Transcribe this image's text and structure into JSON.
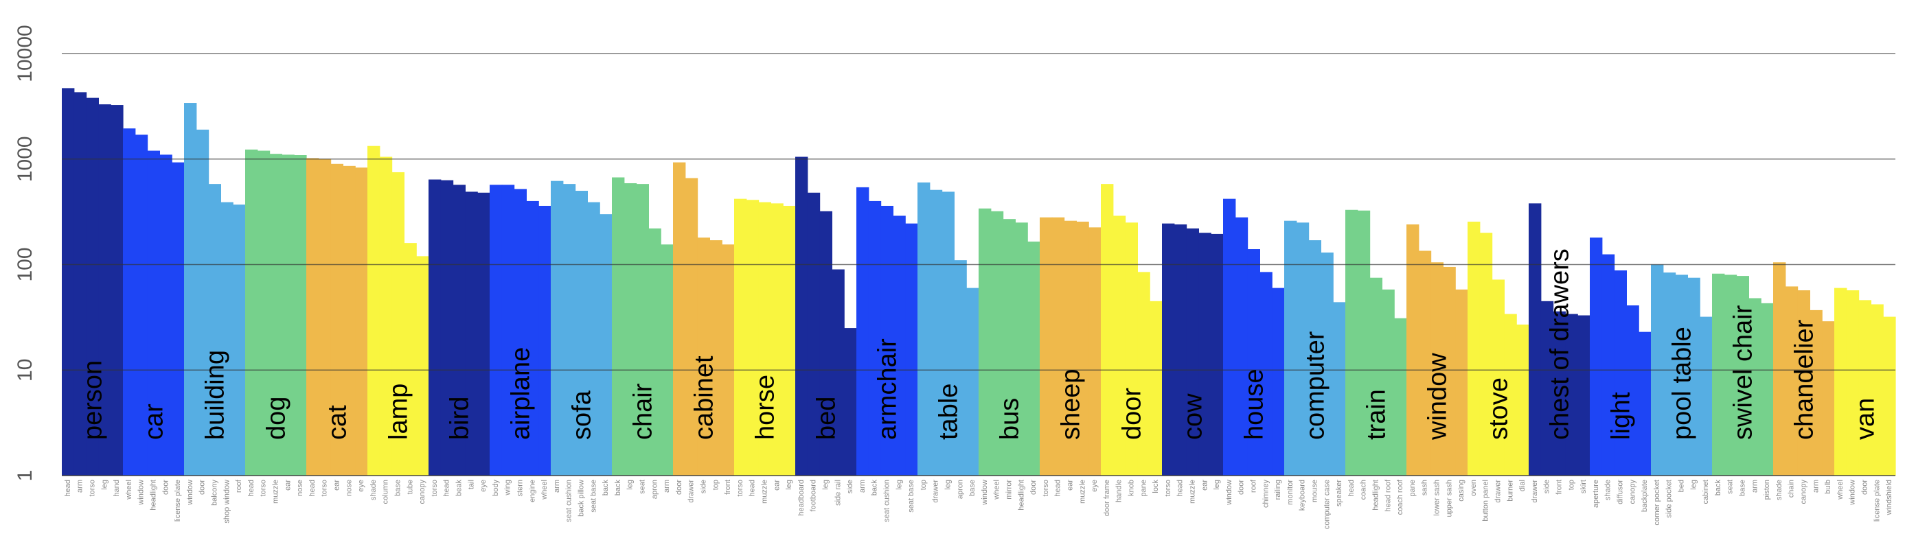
{
  "chart_data": {
    "type": "bar",
    "yscale": "log",
    "ylim": [
      1,
      10000
    ],
    "yticks": [
      "1",
      "10",
      "100",
      "1000",
      "10000"
    ],
    "grid": true,
    "palette": [
      "#1a2b9a",
      "#1e45f5",
      "#56aee3",
      "#76d18c",
      "#efb94b",
      "#f9f53f"
    ],
    "groups": [
      {
        "name": "person",
        "parts": [
          "head",
          "arm",
          "torso",
          "leg",
          "hand"
        ],
        "values": [
          4700,
          4300,
          3800,
          3300,
          3250
        ]
      },
      {
        "name": "car",
        "parts": [
          "wheel",
          "window",
          "headlight",
          "door",
          "license plate"
        ],
        "values": [
          1950,
          1700,
          1200,
          1100,
          930
        ]
      },
      {
        "name": "building",
        "parts": [
          "window",
          "door",
          "balcony",
          "shop window",
          "roof"
        ],
        "values": [
          3400,
          1900,
          580,
          390,
          370
        ]
      },
      {
        "name": "dog",
        "parts": [
          "head",
          "torso",
          "muzzle",
          "ear",
          "nose"
        ],
        "values": [
          1230,
          1200,
          1120,
          1100,
          1090
        ]
      },
      {
        "name": "cat",
        "parts": [
          "head",
          "torso",
          "ear",
          "nose",
          "eye"
        ],
        "values": [
          1020,
          1000,
          900,
          860,
          830
        ]
      },
      {
        "name": "lamp",
        "parts": [
          "shade",
          "column",
          "base",
          "tube",
          "canopy"
        ],
        "values": [
          1330,
          1050,
          750,
          160,
          120
        ]
      },
      {
        "name": "bird",
        "parts": [
          "torso",
          "head",
          "beak",
          "tail",
          "eye"
        ],
        "values": [
          640,
          630,
          570,
          490,
          480
        ]
      },
      {
        "name": "airplane",
        "parts": [
          "body",
          "wing",
          "stern",
          "engine",
          "wheel"
        ],
        "values": [
          570,
          570,
          520,
          400,
          360
        ]
      },
      {
        "name": "sofa",
        "parts": [
          "arm",
          "seat cushion",
          "back pillow",
          "seat base",
          "back"
        ],
        "values": [
          620,
          580,
          500,
          390,
          300
        ]
      },
      {
        "name": "chair",
        "parts": [
          "back",
          "leg",
          "seat",
          "apron",
          "arm"
        ],
        "values": [
          670,
          590,
          580,
          220,
          155
        ]
      },
      {
        "name": "cabinet",
        "parts": [
          "door",
          "drawer",
          "side",
          "top",
          "front"
        ],
        "values": [
          930,
          660,
          180,
          170,
          155
        ]
      },
      {
        "name": "horse",
        "parts": [
          "torso",
          "head",
          "muzzle",
          "ear",
          "leg"
        ],
        "values": [
          420,
          410,
          390,
          380,
          360
        ]
      },
      {
        "name": "bed",
        "parts": [
          "headboard",
          "footboard",
          "leg",
          "side rail",
          "side"
        ],
        "values": [
          1050,
          480,
          320,
          90,
          25
        ]
      },
      {
        "name": "armchair",
        "parts": [
          "arm",
          "back",
          "seat cushion",
          "leg",
          "seat base"
        ],
        "values": [
          540,
          400,
          360,
          290,
          245
        ]
      },
      {
        "name": "table",
        "parts": [
          "top",
          "drawer",
          "leg",
          "apron",
          "base"
        ],
        "values": [
          600,
          510,
          490,
          110,
          60
        ]
      },
      {
        "name": "bus",
        "parts": [
          "window",
          "wheel",
          "mirror",
          "headlight",
          "door"
        ],
        "values": [
          340,
          320,
          270,
          250,
          165
        ]
      },
      {
        "name": "sheep",
        "parts": [
          "torso",
          "head",
          "ear",
          "muzzle",
          "eye"
        ],
        "values": [
          280,
          280,
          260,
          255,
          225
        ]
      },
      {
        "name": "door",
        "parts": [
          "door frame",
          "handle",
          "knob",
          "pane",
          "lock"
        ],
        "values": [
          580,
          290,
          250,
          85,
          45
        ]
      },
      {
        "name": "cow",
        "parts": [
          "torso",
          "head",
          "muzzle",
          "ear",
          "leg"
        ],
        "values": [
          245,
          240,
          220,
          200,
          195
        ]
      },
      {
        "name": "house",
        "parts": [
          "window",
          "door",
          "roof",
          "chimney",
          "railing"
        ],
        "values": [
          420,
          280,
          140,
          85,
          60
        ]
      },
      {
        "name": "computer",
        "parts": [
          "monitor",
          "keyboard",
          "mouse",
          "computer case",
          "speaker"
        ],
        "values": [
          260,
          250,
          170,
          130,
          44
        ]
      },
      {
        "name": "train",
        "parts": [
          "head",
          "coach",
          "headlight",
          "head roof",
          "coach roof"
        ],
        "values": [
          330,
          325,
          75,
          58,
          31
        ]
      },
      {
        "name": "window",
        "parts": [
          "pane",
          "sash",
          "lower sash",
          "upper sash",
          "casing"
        ],
        "values": [
          240,
          135,
          105,
          95,
          58
        ]
      },
      {
        "name": "stove",
        "parts": [
          "oven",
          "button panel",
          "drawer",
          "burner",
          "dial"
        ],
        "values": [
          255,
          200,
          72,
          34,
          27
        ]
      },
      {
        "name": "chest of drawers",
        "parts": [
          "drawer",
          "side",
          "front",
          "top",
          "skirt"
        ],
        "values": [
          380,
          45,
          36,
          34,
          33
        ]
      },
      {
        "name": "light",
        "parts": [
          "aperture",
          "shade",
          "diffusor",
          "canopy",
          "backplate"
        ],
        "values": [
          180,
          125,
          88,
          41,
          23
        ]
      },
      {
        "name": "pool table",
        "parts": [
          "corner pocket",
          "side pocket",
          "bed",
          "leg",
          "cabinet"
        ],
        "values": [
          100,
          84,
          80,
          75,
          32
        ]
      },
      {
        "name": "swivel chair",
        "parts": [
          "back",
          "seat",
          "base",
          "arm",
          "piston"
        ],
        "values": [
          82,
          80,
          78,
          48,
          43
        ]
      },
      {
        "name": "chandelier",
        "parts": [
          "shade",
          "chain",
          "canopy",
          "arm",
          "bulb"
        ],
        "values": [
          105,
          62,
          57,
          37,
          29
        ]
      },
      {
        "name": "van",
        "parts": [
          "wheel",
          "window",
          "door",
          "license plate",
          "windshield"
        ],
        "values": [
          60,
          57,
          46,
          42,
          32
        ]
      }
    ]
  }
}
